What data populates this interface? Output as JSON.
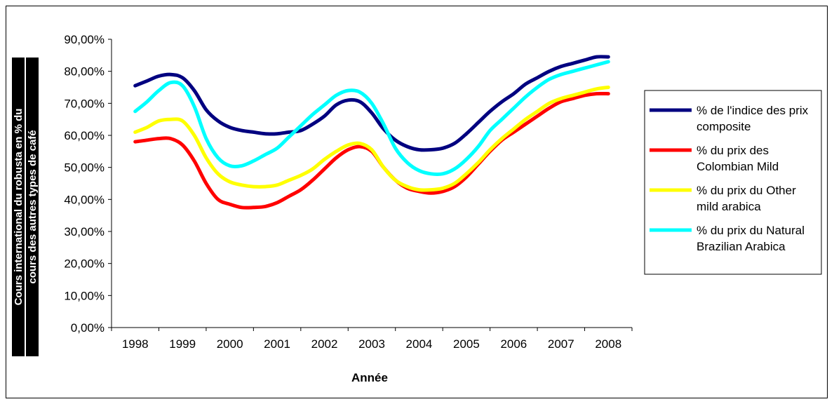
{
  "chart_data": {
    "type": "line",
    "title": "",
    "xlabel": "Année",
    "ylabel_lines": [
      "Cours international du robusta en % du",
      "cours des autres types de café"
    ],
    "categories": [
      "1998",
      "1999",
      "2000",
      "2001",
      "2002",
      "2003",
      "2004",
      "2005",
      "2006",
      "2007",
      "2008"
    ],
    "y_ticks": [
      "0,00%",
      "10,00%",
      "20,00%",
      "30,00%",
      "40,00%",
      "50,00%",
      "60,00%",
      "70,00%",
      "80,00%",
      "90,00%"
    ],
    "ylim": [
      0,
      90
    ],
    "grid": false,
    "legend_position": "right",
    "x": [
      1998.0,
      1998.25,
      1998.5,
      1998.75,
      1999.0,
      1999.25,
      1999.5,
      1999.75,
      2000.0,
      2000.25,
      2000.5,
      2000.75,
      2001.0,
      2001.25,
      2001.5,
      2001.75,
      2002.0,
      2002.25,
      2002.5,
      2002.75,
      2003.0,
      2003.25,
      2003.5,
      2003.75,
      2004.0,
      2004.25,
      2004.5,
      2004.75,
      2005.0,
      2005.25,
      2005.5,
      2005.75,
      2006.0,
      2006.25,
      2006.5,
      2006.75,
      2007.0,
      2007.25,
      2007.5,
      2007.75,
      2008.0
    ],
    "series": [
      {
        "name": "% de l'indice des prix composite",
        "color": "#000080",
        "values": [
          75.5,
          77,
          78.5,
          79,
          78,
          74,
          68,
          64.5,
          62.5,
          61.5,
          61,
          60.5,
          60.5,
          61,
          61.5,
          63.5,
          66,
          69.5,
          71,
          70.5,
          67,
          62,
          58.5,
          56.5,
          55.5,
          55.5,
          56,
          57.5,
          60.5,
          64,
          67.5,
          70.5,
          73,
          76,
          78,
          80,
          81.5,
          82.5,
          83.5,
          84.5,
          84.5
        ]
      },
      {
        "name": "% du prix des Colombian Mild",
        "color": "#ff0000",
        "values": [
          58,
          58.5,
          59,
          59,
          57,
          52,
          45,
          40,
          38.5,
          37.5,
          37.5,
          37.8,
          39,
          41,
          43,
          46,
          49.5,
          53,
          55.5,
          56.5,
          55,
          50,
          46,
          43.5,
          42.5,
          42,
          42.5,
          44,
          47,
          51,
          55,
          58.5,
          61,
          63.5,
          66,
          68.5,
          70.5,
          71.5,
          72.5,
          73,
          73
        ]
      },
      {
        "name": "% du prix du Other mild arabica",
        "color": "#ffff00",
        "values": [
          61,
          62.5,
          64.5,
          65,
          64.5,
          60,
          53,
          48,
          45.5,
          44.5,
          44,
          44,
          44.5,
          46,
          47.5,
          49.5,
          52.5,
          55,
          57,
          57.5,
          55.5,
          50,
          46,
          44,
          43,
          43,
          43.5,
          45,
          48,
          51.5,
          55.5,
          59,
          62,
          65,
          67.5,
          70,
          71.5,
          72.5,
          73.5,
          74.5,
          75
        ]
      },
      {
        "name": "% du prix du Natural Brazilian Arabica",
        "color": "#00ffff",
        "values": [
          67.5,
          70.5,
          74,
          76.5,
          75.5,
          69,
          59,
          53,
          50.5,
          50.5,
          52,
          54,
          56,
          59.5,
          63,
          66.5,
          69.5,
          72.5,
          74,
          73.5,
          70,
          63.5,
          56,
          51.5,
          49,
          48,
          48,
          49.5,
          52.5,
          56.5,
          61.5,
          65,
          68.5,
          72,
          75,
          77.5,
          79,
          80,
          81,
          82,
          83
        ]
      }
    ]
  }
}
